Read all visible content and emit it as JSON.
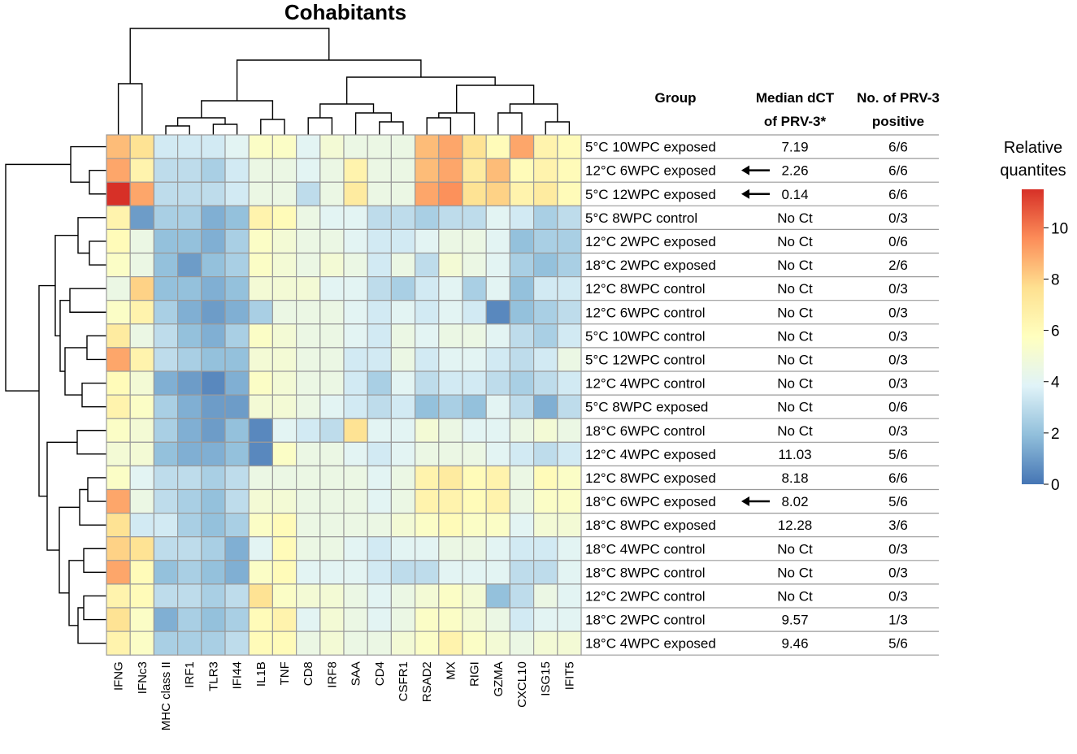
{
  "chart_data": {
    "type": "heatmap",
    "title": "Cohabitants",
    "columns": [
      "IFNG",
      "IFNc3",
      "MHC class II",
      "IRF1",
      "TLR3",
      "IFI44",
      "IL1B",
      "TNF",
      "CD8",
      "IRF8",
      "SAA",
      "CD4",
      "CSFR1",
      "RSAD2",
      "MX",
      "RIGI",
      "GZMA",
      "CXCL10",
      "ISG15",
      "IFIT5"
    ],
    "table_headers": {
      "group": "Group",
      "dct_line1": "Median dCT",
      "dct_line2": "of PRV-3*",
      "pos_line1": "No. of PRV-3",
      "pos_line2": "positive"
    },
    "rows": [
      {
        "group": "5°C 10WPC exposed",
        "dct": "7.19",
        "pos": "6/6",
        "arrow": false,
        "values": [
          8.5,
          7.5,
          3.5,
          3.5,
          3.5,
          4,
          5.5,
          5.5,
          4,
          5,
          4.5,
          4.5,
          4.5,
          8.5,
          9,
          7.5,
          6,
          9,
          6.5,
          6
        ]
      },
      {
        "group": "12°C 6WPC exposed",
        "dct": "2.26",
        "pos": "6/6",
        "arrow": true,
        "values": [
          9,
          6.5,
          3,
          3,
          2.5,
          3.5,
          4.5,
          4.5,
          4,
          4.5,
          6.5,
          4.5,
          4.5,
          8.5,
          9,
          7,
          8.5,
          6,
          6.5,
          6
        ]
      },
      {
        "group": "5°C 12WPC exposed",
        "dct": "0.14",
        "pos": "6/6",
        "arrow": true,
        "values": [
          11.5,
          9,
          3,
          3,
          3,
          3.5,
          4.5,
          4.5,
          3,
          4.5,
          7,
          4.5,
          4.5,
          9,
          9.5,
          7.5,
          8,
          6.5,
          7,
          6
        ]
      },
      {
        "group": "5°C 8WPC control",
        "dct": "No Ct",
        "pos": "0/3",
        "arrow": false,
        "values": [
          6.5,
          1,
          2.5,
          2.5,
          1.5,
          2,
          6.5,
          6,
          4.5,
          4,
          4,
          3,
          3,
          2.5,
          3,
          3,
          4,
          3.5,
          2.5,
          3
        ]
      },
      {
        "group": "12°C 2WPC exposed",
        "dct": "No Ct",
        "pos": "0/6",
        "arrow": false,
        "values": [
          6,
          4.5,
          2,
          2,
          1.5,
          2.5,
          5.5,
          5,
          4.5,
          4.5,
          4,
          3.5,
          3.5,
          4,
          4.5,
          4.5,
          4,
          2,
          2.5,
          2.5
        ]
      },
      {
        "group": "18°C 2WPC exposed",
        "dct": "No Ct",
        "pos": "2/6",
        "arrow": false,
        "values": [
          5.5,
          4.5,
          2,
          1,
          2,
          2.5,
          5.5,
          5,
          4.5,
          5,
          4.5,
          3.5,
          4.5,
          3,
          5,
          4.5,
          4,
          2.5,
          2,
          2.5
        ]
      },
      {
        "group": "12°C 8WPC control",
        "dct": "No Ct",
        "pos": "0/3",
        "arrow": false,
        "values": [
          4.5,
          8,
          2,
          2,
          1.5,
          2,
          5,
          5,
          5,
          4,
          4,
          3,
          2.5,
          3.5,
          4,
          2.5,
          4,
          2,
          3.5,
          3.5
        ]
      },
      {
        "group": "12°C 6WPC control",
        "dct": "No Ct",
        "pos": "0/3",
        "arrow": false,
        "values": [
          5.5,
          6.5,
          2.5,
          1.5,
          1,
          1.5,
          2.5,
          4.5,
          4.5,
          4.5,
          4,
          3.5,
          4,
          3.5,
          4,
          3.5,
          0.5,
          2,
          2.5,
          3
        ]
      },
      {
        "group": "5°C 10WPC control",
        "dct": "No Ct",
        "pos": "0/3",
        "arrow": false,
        "values": [
          7,
          4.5,
          3,
          2,
          1.5,
          2.5,
          5.5,
          5,
          4.5,
          4.5,
          4,
          3.5,
          4.5,
          4,
          4.5,
          4.5,
          4,
          3,
          2.5,
          3.5
        ]
      },
      {
        "group": "5°C 12WPC control",
        "dct": "No Ct",
        "pos": "0/3",
        "arrow": false,
        "values": [
          9,
          6.5,
          3,
          2.5,
          2,
          2,
          5,
          5,
          4.5,
          4.5,
          3.5,
          3.5,
          4.5,
          3.5,
          4,
          4,
          3.5,
          3,
          3.5,
          4.5
        ]
      },
      {
        "group": "12°C 4WPC control",
        "dct": "No Ct",
        "pos": "0/3",
        "arrow": false,
        "values": [
          6,
          5,
          1.5,
          1,
          0.5,
          1.5,
          5.5,
          5,
          4.5,
          4.5,
          3.5,
          2.5,
          4,
          3,
          3.5,
          3.5,
          3,
          2.5,
          3,
          3.5
        ]
      },
      {
        "group": "5°C 8WPC exposed",
        "dct": "No Ct",
        "pos": "0/6",
        "arrow": false,
        "values": [
          6.5,
          5.5,
          2.5,
          1.5,
          1,
          1,
          5,
          5,
          4.5,
          4,
          3.5,
          3,
          3.5,
          2,
          2.5,
          2,
          4,
          3,
          1.5,
          3
        ]
      },
      {
        "group": "18°C 6WPC control",
        "dct": "No Ct",
        "pos": "0/3",
        "arrow": false,
        "values": [
          5.5,
          5,
          2.5,
          1.5,
          1,
          2,
          0.5,
          4,
          3.5,
          3,
          7.5,
          4,
          4,
          5,
          4.5,
          4,
          4,
          4.5,
          5,
          4.5
        ]
      },
      {
        "group": "12°C 4WPC exposed",
        "dct": "11.03",
        "pos": "5/6",
        "arrow": false,
        "values": [
          5,
          5,
          2,
          1.5,
          1.5,
          2,
          0.5,
          5.5,
          4.5,
          4.5,
          4,
          3.5,
          4,
          4.5,
          4.5,
          4.5,
          4,
          3.5,
          3,
          3.5
        ]
      },
      {
        "group": "12°C 8WPC exposed",
        "dct": "8.18",
        "pos": "6/6",
        "arrow": false,
        "values": [
          5.5,
          4,
          3,
          3,
          2.5,
          3,
          4.5,
          4.5,
          4.5,
          4.5,
          4.5,
          4,
          4.5,
          6.5,
          7,
          6,
          6.5,
          4.5,
          6,
          5.5
        ]
      },
      {
        "group": "18°C 6WPC exposed",
        "dct": "8.02",
        "pos": "5/6",
        "arrow": true,
        "values": [
          9,
          4.5,
          3,
          2.5,
          2,
          3,
          5,
          5,
          4.5,
          4.5,
          4.5,
          4,
          4.5,
          6.5,
          6.5,
          6,
          6.5,
          4.5,
          5.5,
          5.5
        ]
      },
      {
        "group": "18°C 8WPC exposed",
        "dct": "12.28",
        "pos": "3/6",
        "arrow": false,
        "values": [
          7.5,
          3.5,
          3.5,
          2.5,
          2,
          2.5,
          5.5,
          6,
          4.5,
          4.5,
          4.5,
          4.5,
          5,
          5.5,
          6,
          5.5,
          5.5,
          4,
          5,
          5
        ]
      },
      {
        "group": "18°C 4WPC control",
        "dct": "No Ct",
        "pos": "0/3",
        "arrow": false,
        "values": [
          8,
          7.5,
          3,
          3,
          2.5,
          1.5,
          4,
          6,
          4.5,
          4.5,
          4,
          3.5,
          4,
          4,
          4.5,
          4.5,
          4,
          3.5,
          3.5,
          4
        ]
      },
      {
        "group": "18°C 8WPC control",
        "dct": "No Ct",
        "pos": "0/3",
        "arrow": false,
        "values": [
          9,
          6,
          2,
          2.5,
          2,
          1.5,
          5.5,
          6,
          4,
          4,
          4,
          3.5,
          3,
          3,
          4,
          4,
          4,
          3,
          3,
          4
        ]
      },
      {
        "group": "12°C 2WPC control",
        "dct": "No Ct",
        "pos": "0/3",
        "arrow": false,
        "values": [
          6.5,
          6,
          3,
          3,
          2.5,
          3,
          7.5,
          5.5,
          5,
          5,
          4.5,
          4,
          4.5,
          5,
          5.5,
          5,
          2,
          3,
          4.5,
          4
        ]
      },
      {
        "group": "18°C 2WPC control",
        "dct": "9.57",
        "pos": "1/3",
        "arrow": false,
        "values": [
          7.5,
          5.5,
          1.5,
          2.5,
          2,
          2.5,
          6,
          6.5,
          4,
          5,
          4.5,
          4,
          4.5,
          5.5,
          5.5,
          5,
          4.5,
          3.5,
          4,
          4
        ]
      },
      {
        "group": "18°C 4WPC exposed",
        "dct": "9.46",
        "pos": "5/6",
        "arrow": false,
        "values": [
          6.5,
          5.5,
          2.5,
          2.5,
          2.5,
          3,
          6,
          6,
          4.5,
          5,
          4.5,
          4.5,
          5,
          5.5,
          6.5,
          5.5,
          5,
          4.5,
          5,
          5
        ]
      }
    ],
    "legend": {
      "title_line1": "Relative",
      "title_line2": "quantites",
      "min": 0,
      "max": 11.5,
      "ticks": [
        "0",
        "2",
        "4",
        "6",
        "8",
        "10"
      ],
      "colors": [
        "#4575b4",
        "#91bfdb",
        "#e0f3f8",
        "#ffffbf",
        "#fee090",
        "#fc8d59",
        "#d73027"
      ]
    }
  }
}
